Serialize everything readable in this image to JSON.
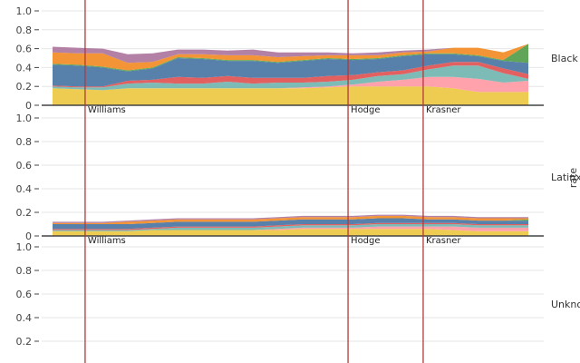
{
  "colors": {
    "grid": "#e6e6e6",
    "axis": "#444444",
    "vline": "#b03a3a",
    "series": [
      "#edc948",
      "#ff9da7",
      "#76b7b2",
      "#e15759",
      "#4e79a7",
      "#59a14f",
      "#f28e2b",
      "#b07aa1"
    ]
  },
  "chart_data": {
    "type": "area",
    "stacked": true,
    "ylabel": "rate",
    "x": [
      0,
      1,
      2,
      3,
      4,
      5,
      6,
      7,
      8,
      9,
      10,
      11,
      12,
      13,
      14,
      15,
      16,
      17,
      18,
      19
    ],
    "ylim": [
      0,
      1
    ],
    "yticks": [
      0,
      0.2,
      0.4,
      0.6,
      0.8,
      1.0
    ],
    "yticks_labels": [
      "0",
      "0.2",
      "0.4",
      "0.6",
      "0.8",
      "1.0"
    ],
    "grid": true,
    "vlines": [
      {
        "x": 1.3,
        "label": "Williams"
      },
      {
        "x": 11.8,
        "label": "Hodge"
      },
      {
        "x": 14.8,
        "label": "Krasner"
      }
    ],
    "facets": [
      {
        "label": "Black",
        "series": [
          {
            "values": [
              0.18,
              0.17,
              0.16,
              0.18,
              0.18,
              0.18,
              0.18,
              0.18,
              0.18,
              0.18,
              0.18,
              0.19,
              0.2,
              0.2,
              0.2,
              0.2,
              0.18,
              0.14,
              0.14,
              0.14
            ]
          },
          {
            "values": [
              0.0,
              0.0,
              0.0,
              0.0,
              0.0,
              0.0,
              0.0,
              0.0,
              0.0,
              0.0,
              0.01,
              0.01,
              0.02,
              0.05,
              0.07,
              0.1,
              0.12,
              0.14,
              0.1,
              0.12
            ]
          },
          {
            "values": [
              0.02,
              0.02,
              0.03,
              0.05,
              0.06,
              0.05,
              0.05,
              0.07,
              0.05,
              0.06,
              0.05,
              0.05,
              0.05,
              0.06,
              0.06,
              0.08,
              0.12,
              0.14,
              0.1,
              0.02
            ]
          },
          {
            "values": [
              0.01,
              0.01,
              0.01,
              0.03,
              0.03,
              0.07,
              0.06,
              0.06,
              0.06,
              0.05,
              0.05,
              0.06,
              0.05,
              0.04,
              0.04,
              0.04,
              0.04,
              0.04,
              0.05,
              0.05
            ]
          },
          {
            "values": [
              0.22,
              0.22,
              0.2,
              0.1,
              0.12,
              0.2,
              0.2,
              0.16,
              0.18,
              0.16,
              0.18,
              0.18,
              0.16,
              0.14,
              0.15,
              0.12,
              0.08,
              0.06,
              0.08,
              0.12
            ]
          },
          {
            "values": [
              0.01,
              0.01,
              0.01,
              0.01,
              0.01,
              0.01,
              0.01,
              0.01,
              0.01,
              0.01,
              0.01,
              0.01,
              0.01,
              0.01,
              0.01,
              0.01,
              0.01,
              0.01,
              0.01,
              0.2
            ]
          },
          {
            "values": [
              0.12,
              0.12,
              0.14,
              0.08,
              0.06,
              0.03,
              0.04,
              0.05,
              0.05,
              0.05,
              0.04,
              0.03,
              0.04,
              0.03,
              0.03,
              0.02,
              0.06,
              0.08,
              0.08,
              0.0
            ]
          },
          {
            "values": [
              0.06,
              0.06,
              0.05,
              0.09,
              0.09,
              0.05,
              0.05,
              0.05,
              0.06,
              0.05,
              0.04,
              0.03,
              0.02,
              0.03,
              0.02,
              0.02,
              0.0,
              0.0,
              0.0,
              0.0
            ]
          }
        ]
      },
      {
        "label": "Latinx",
        "series": [
          {
            "values": [
              0.04,
              0.04,
              0.04,
              0.04,
              0.05,
              0.05,
              0.05,
              0.05,
              0.05,
              0.05,
              0.06,
              0.06,
              0.06,
              0.06,
              0.06,
              0.06,
              0.05,
              0.04,
              0.04,
              0.04
            ]
          },
          {
            "values": [
              0.0,
              0.0,
              0.0,
              0.0,
              0.0,
              0.0,
              0.0,
              0.0,
              0.0,
              0.01,
              0.01,
              0.01,
              0.01,
              0.02,
              0.02,
              0.02,
              0.03,
              0.03,
              0.03,
              0.03
            ]
          },
          {
            "values": [
              0.01,
              0.01,
              0.01,
              0.01,
              0.01,
              0.02,
              0.02,
              0.02,
              0.02,
              0.02,
              0.02,
              0.02,
              0.02,
              0.02,
              0.02,
              0.02,
              0.02,
              0.02,
              0.02,
              0.02
            ]
          },
          {
            "values": [
              0.01,
              0.01,
              0.01,
              0.01,
              0.01,
              0.01,
              0.01,
              0.01,
              0.01,
              0.01,
              0.01,
              0.01,
              0.01,
              0.01,
              0.01,
              0.01,
              0.01,
              0.01,
              0.01,
              0.01
            ]
          },
          {
            "values": [
              0.04,
              0.04,
              0.04,
              0.04,
              0.04,
              0.04,
              0.04,
              0.04,
              0.04,
              0.04,
              0.04,
              0.04,
              0.04,
              0.04,
              0.04,
              0.03,
              0.03,
              0.03,
              0.03,
              0.03
            ]
          },
          {
            "values": [
              0.0,
              0.0,
              0.0,
              0.0,
              0.0,
              0.0,
              0.0,
              0.0,
              0.0,
              0.0,
              0.0,
              0.0,
              0.0,
              0.0,
              0.0,
              0.0,
              0.0,
              0.0,
              0.0,
              0.01
            ]
          },
          {
            "values": [
              0.01,
              0.01,
              0.01,
              0.02,
              0.02,
              0.02,
              0.02,
              0.02,
              0.02,
              0.02,
              0.02,
              0.02,
              0.02,
              0.02,
              0.02,
              0.02,
              0.02,
              0.02,
              0.02,
              0.01
            ]
          },
          {
            "values": [
              0.01,
              0.01,
              0.01,
              0.01,
              0.01,
              0.01,
              0.01,
              0.01,
              0.01,
              0.01,
              0.01,
              0.01,
              0.01,
              0.01,
              0.01,
              0.01,
              0.01,
              0.01,
              0.01,
              0.01
            ]
          }
        ]
      },
      {
        "label": "Unknown",
        "series": []
      }
    ]
  }
}
